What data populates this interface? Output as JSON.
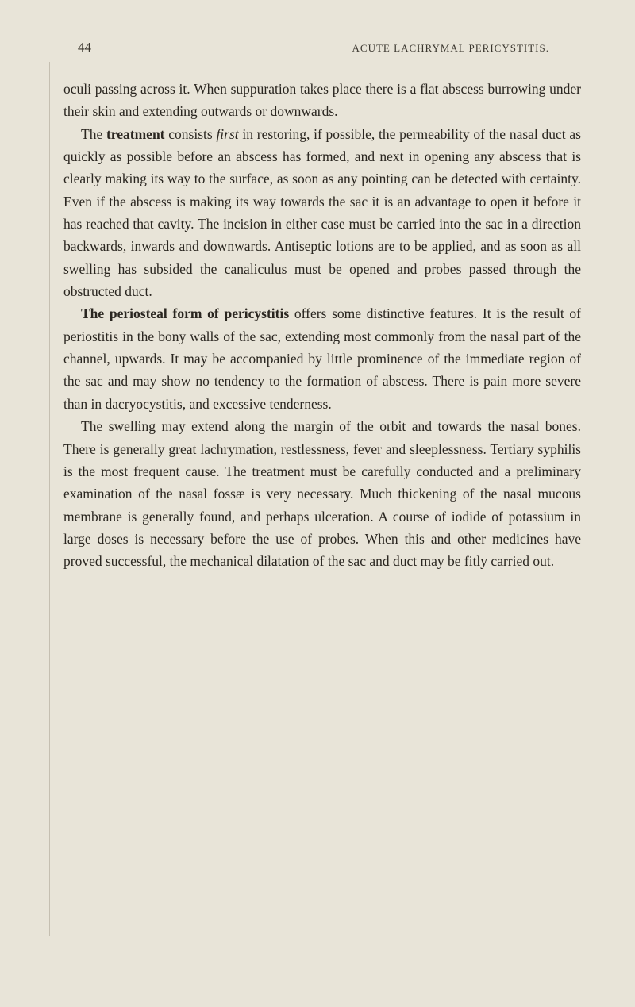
{
  "page": {
    "number": "44",
    "running_header": "ACUTE LACHRYMAL PERICYSTITIS.",
    "background_color": "#e8e4d8",
    "text_color": "#2a2620",
    "body_fontsize": 17.5,
    "header_fontsize": 13,
    "line_height": 1.62
  },
  "paragraphs": {
    "p1_a": "oculi passing across it. When suppuration takes place there is a flat abscess burrowing under their skin and extending out­wards or downwards.",
    "p2_a": "The ",
    "p2_b": "treatment",
    "p2_c": " consists ",
    "p2_d": "first",
    "p2_e": " in restoring, if possible, the permeability of the nasal duct as quickly as possible before an abscess has formed, and next in opening any abscess that is clearly making its way to the surface, as soon as any pointing can be detected with certainty. Even if the abscess is making its way towards the sac it is an advantage to open it before it has reached that cavity. The incision in either case must be carried into the sac in a direction backwards, inwards and downwards. Antiseptic lotions are to be applied, and as soon as all swelling has subsided the canaliculus must be opened and probes passed through the obstructed duct.",
    "p3_a": "The periosteal form of pericystitis",
    "p3_b": " offers some dis­tinctive features. It is the result of periostitis in the bony walls of the sac, extending most commonly from the nasal part of the channel, upwards. It may be accompanied by little prominence of the immediate region of the sac and may show no tendency to the formation of abscess. There is pain more severe than in dacryocystitis, and excessive tenderness.",
    "p4_a": "The swelling may extend along the margin of the orbit and towards the nasal bones. There is generally great lachryma­tion, restlessness, fever and sleeplessness. Tertiary syphilis is the most frequent cause. The treatment must be carefully con­ducted and a preliminary examination of the nasal fossæ is very necessary. Much thickening of the nasal mucous membrane is generally found, and perhaps ulceration. A course of iodide of potassium in large doses is necessary before the use of probes. When this and other medicines have proved successful, the mechanical dilatation of the sac and duct may be fitly carried out."
  }
}
